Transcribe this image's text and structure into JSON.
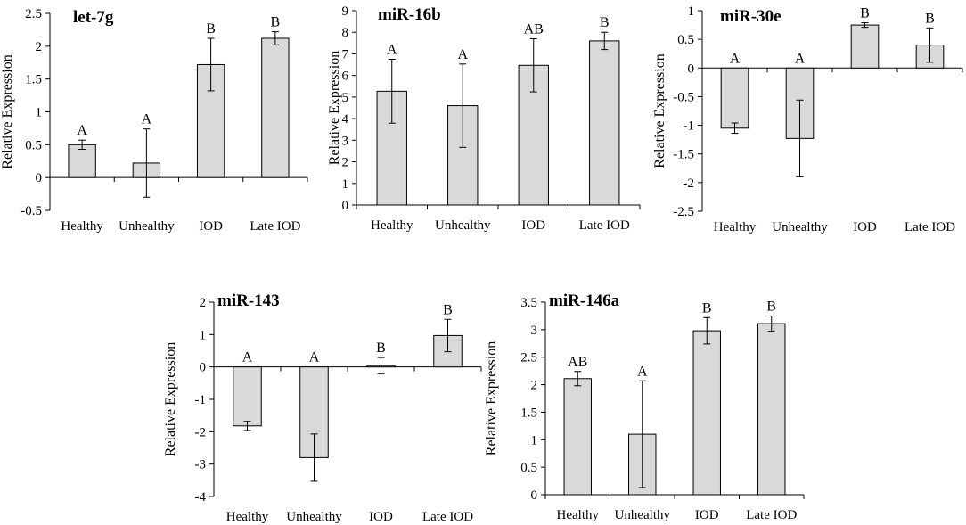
{
  "colors": {
    "bar_fill": "#d9d9d9",
    "bar_stroke": "#000000",
    "axis": "#000000"
  },
  "chart_data": [
    {
      "type": "bar",
      "title": "let-7g",
      "ylabel": "Relative Expression",
      "xlabel": "",
      "categories": [
        "Healthy",
        "Unhealthy",
        "IOD",
        "Late IOD"
      ],
      "values": [
        0.5,
        0.22,
        1.72,
        2.12
      ],
      "errors": [
        0.07,
        0.52,
        0.4,
        0.1
      ],
      "significance": [
        "A",
        "A",
        "B",
        "B"
      ],
      "ylim": [
        -0.5,
        2.5
      ],
      "yticks": [
        -0.5,
        0,
        0.5,
        1,
        1.5,
        2,
        2.5
      ],
      "ytick_labels": [
        "-0.5",
        "0",
        "0.5",
        "1",
        "1.5",
        "2",
        "2.5"
      ]
    },
    {
      "type": "bar",
      "title": "miR-16b",
      "ylabel": "Relative Expression",
      "xlabel": "",
      "categories": [
        "Healthy",
        "Unhealthy",
        "IOD",
        "Late IOD"
      ],
      "values": [
        5.27,
        4.6,
        6.47,
        7.6
      ],
      "errors": [
        1.48,
        1.93,
        1.23,
        0.4
      ],
      "significance": [
        "A",
        "A",
        "AB",
        "B"
      ],
      "ylim": [
        0,
        9
      ],
      "yticks": [
        0,
        1,
        2,
        3,
        4,
        5,
        6,
        7,
        8,
        9
      ],
      "ytick_labels": [
        "0",
        "1",
        "2",
        "3",
        "4",
        "5",
        "6",
        "7",
        "8",
        "9"
      ]
    },
    {
      "type": "bar",
      "title": "miR-30e",
      "ylabel": "Relative Expression",
      "xlabel": "",
      "categories": [
        "Healthy",
        "Unhealthy",
        "IOD",
        "Late IOD"
      ],
      "values": [
        -1.05,
        -1.23,
        0.75,
        0.4
      ],
      "errors": [
        0.09,
        0.67,
        0.04,
        0.3
      ],
      "significance": [
        "A",
        "A",
        "B",
        "B"
      ],
      "ylim": [
        -2.5,
        1.0
      ],
      "yticks": [
        -2.5,
        -2,
        -1.5,
        -1,
        -0.5,
        0,
        0.5,
        1
      ],
      "ytick_labels": [
        "-2.5",
        "-2",
        "-1.5",
        "-1",
        "-0.5",
        "0",
        "0.5",
        "1"
      ]
    },
    {
      "type": "bar",
      "title": "miR-143",
      "ylabel": "Relative Expression",
      "xlabel": "",
      "categories": [
        "Healthy",
        "Unhealthy",
        "IOD",
        "Late IOD"
      ],
      "values": [
        -1.82,
        -2.8,
        0.04,
        0.97
      ],
      "errors": [
        0.14,
        0.73,
        0.25,
        0.5
      ],
      "significance": [
        "A",
        "A",
        "B",
        "B"
      ],
      "ylim": [
        -4,
        2
      ],
      "yticks": [
        -4,
        -3,
        -2,
        -1,
        0,
        1,
        2
      ],
      "ytick_labels": [
        "-4",
        "-3",
        "-2",
        "-1",
        "0",
        "1",
        "2"
      ]
    },
    {
      "type": "bar",
      "title": "miR-146a",
      "ylabel": "Relative Expression",
      "xlabel": "",
      "categories": [
        "Healthy",
        "Unhealthy",
        "IOD",
        "Late IOD"
      ],
      "values": [
        2.11,
        1.1,
        2.98,
        3.11
      ],
      "errors": [
        0.13,
        0.97,
        0.24,
        0.14
      ],
      "significance": [
        "AB",
        "A",
        "B",
        "B"
      ],
      "ylim": [
        0,
        3.5
      ],
      "yticks": [
        0,
        0.5,
        1,
        1.5,
        2,
        2.5,
        3,
        3.5
      ],
      "ytick_labels": [
        "0",
        "0.5",
        "1",
        "1.5",
        "2",
        "2.5",
        "3",
        "3.5"
      ]
    }
  ]
}
